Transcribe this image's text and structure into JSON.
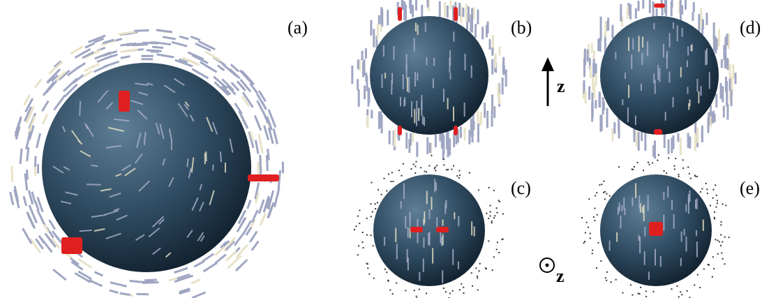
{
  "panels": [
    {
      "label": "(a)"
    },
    {
      "label": "(b)"
    },
    {
      "label": "(c)"
    },
    {
      "label": "(d)"
    },
    {
      "label": "(e)"
    }
  ],
  "axes": [
    {
      "label": "z"
    },
    {
      "label": "z"
    }
  ]
}
